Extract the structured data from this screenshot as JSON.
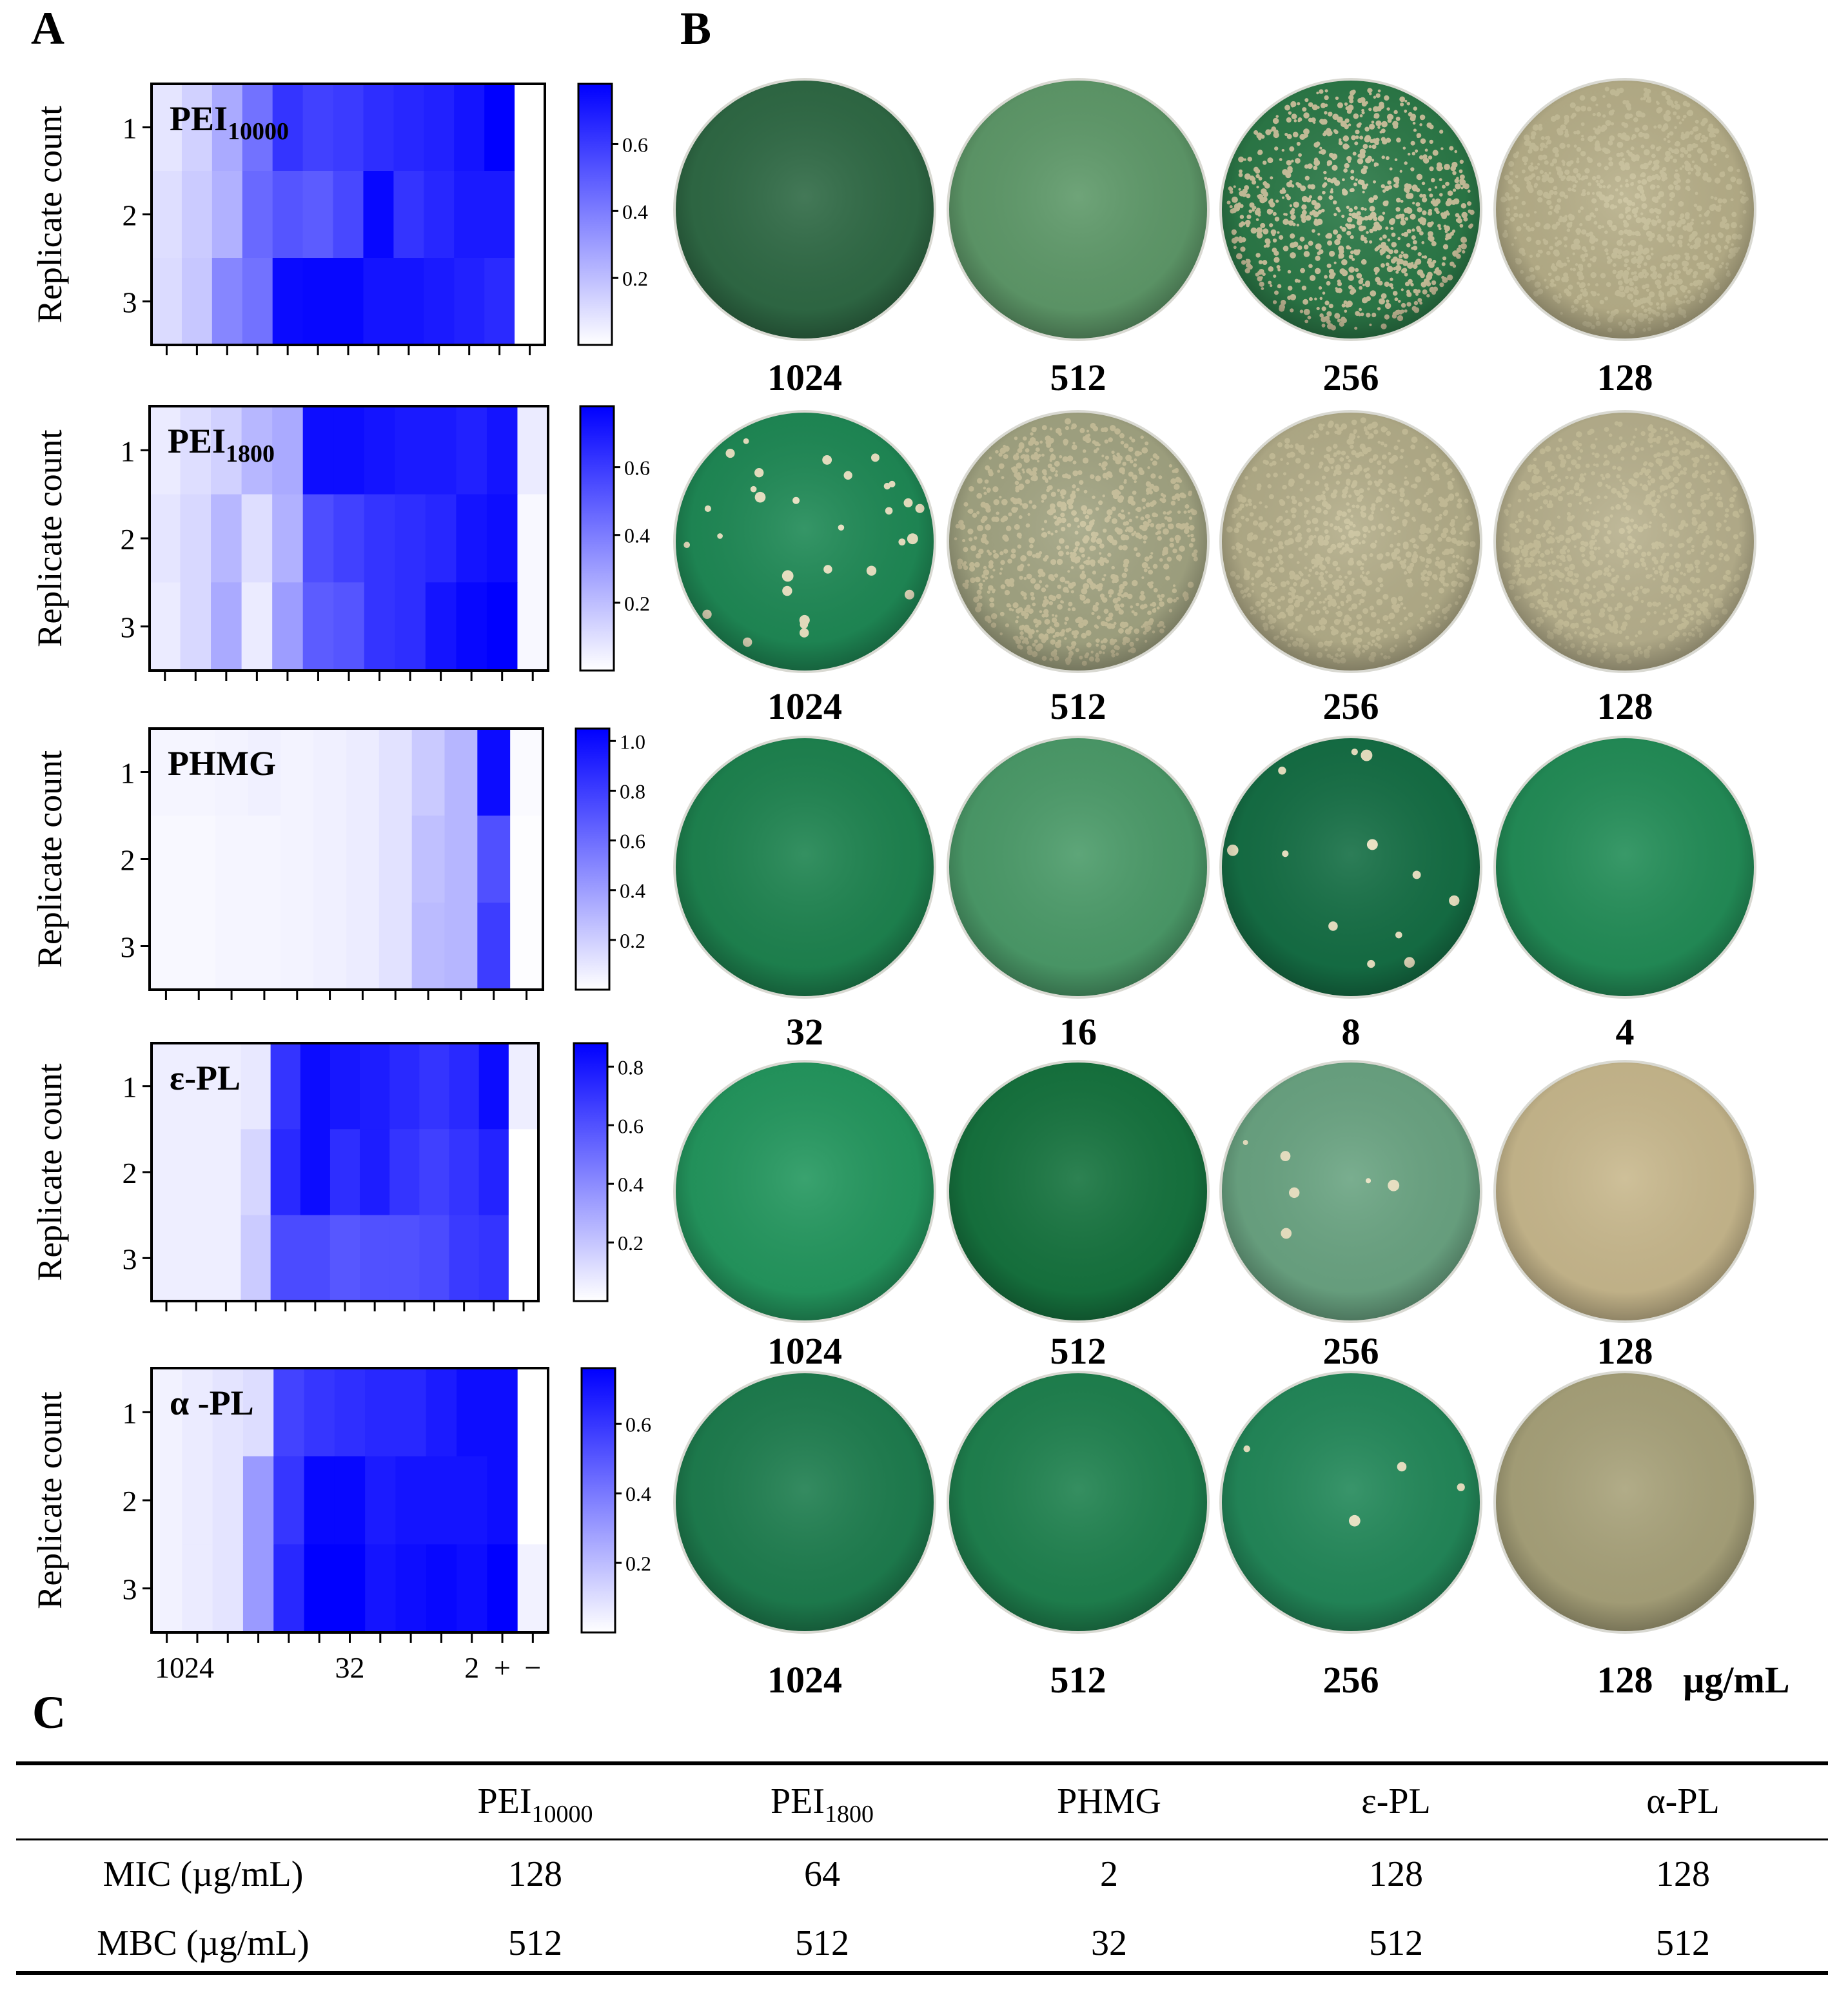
{
  "panels": {
    "a": "A",
    "b": "B",
    "c": "C"
  },
  "heatmaps": [
    {
      "title": "PEI",
      "sub": "10000",
      "ticks": [
        "0.6",
        "0.4",
        "0.2"
      ],
      "tickvals": [
        0.6,
        0.4,
        0.2
      ],
      "vmax": 0.78,
      "rows": [
        [
          0.08,
          0.14,
          0.26,
          0.43,
          0.62,
          0.58,
          0.6,
          0.64,
          0.66,
          0.68,
          0.72,
          0.78,
          0.0
        ],
        [
          0.1,
          0.16,
          0.24,
          0.46,
          0.52,
          0.5,
          0.56,
          0.76,
          0.62,
          0.66,
          0.7,
          0.7,
          0.0
        ],
        [
          0.11,
          0.17,
          0.37,
          0.43,
          0.75,
          0.76,
          0.76,
          0.72,
          0.72,
          0.7,
          0.68,
          0.65,
          0.0
        ]
      ]
    },
    {
      "title": "PEI",
      "sub": "1800",
      "ticks": [
        "0.6",
        "0.4",
        "0.2"
      ],
      "tickvals": [
        0.6,
        0.4,
        0.2
      ],
      "vmax": 0.78,
      "rows": [
        [
          0.06,
          0.1,
          0.14,
          0.22,
          0.26,
          0.74,
          0.74,
          0.72,
          0.7,
          0.7,
          0.68,
          0.72,
          0.06
        ],
        [
          0.08,
          0.12,
          0.22,
          0.1,
          0.24,
          0.54,
          0.58,
          0.62,
          0.64,
          0.66,
          0.72,
          0.74,
          0.02
        ],
        [
          0.06,
          0.12,
          0.26,
          0.06,
          0.3,
          0.5,
          0.52,
          0.62,
          0.64,
          0.72,
          0.76,
          0.78,
          0.02
        ]
      ]
    },
    {
      "title": "PHMG",
      "sub": "",
      "ticks": [
        "1.0",
        "0.8",
        "0.6",
        "0.4",
        "0.2"
      ],
      "tickvals": [
        1.0,
        0.8,
        0.6,
        0.4,
        0.2
      ],
      "vmax": 1.05,
      "rows": [
        [
          0.04,
          0.04,
          0.05,
          0.06,
          0.05,
          0.06,
          0.08,
          0.12,
          0.22,
          0.3,
          1.0,
          0.02
        ],
        [
          0.03,
          0.03,
          0.04,
          0.04,
          0.05,
          0.06,
          0.08,
          0.12,
          0.26,
          0.3,
          0.72,
          0.01
        ],
        [
          0.03,
          0.03,
          0.04,
          0.04,
          0.05,
          0.06,
          0.08,
          0.12,
          0.28,
          0.3,
          0.8,
          0.01
        ]
      ]
    },
    {
      "title": "ε-PL",
      "sub": "",
      "ticks": [
        "0.8",
        "0.6",
        "0.4",
        "0.2"
      ],
      "tickvals": [
        0.8,
        0.6,
        0.4,
        0.2
      ],
      "vmax": 0.88,
      "rows": [
        [
          0.06,
          0.06,
          0.06,
          0.08,
          0.7,
          0.84,
          0.8,
          0.78,
          0.74,
          0.7,
          0.74,
          0.84,
          0.06
        ],
        [
          0.06,
          0.06,
          0.06,
          0.14,
          0.74,
          0.84,
          0.72,
          0.78,
          0.7,
          0.66,
          0.7,
          0.76,
          0.0
        ],
        [
          0.06,
          0.06,
          0.06,
          0.18,
          0.62,
          0.62,
          0.58,
          0.6,
          0.6,
          0.62,
          0.68,
          0.7,
          0.0
        ]
      ]
    },
    {
      "title": "α -PL",
      "sub": "",
      "ticks": [
        "0.6",
        "0.4",
        "0.2"
      ],
      "tickvals": [
        0.6,
        0.4,
        0.2
      ],
      "vmax": 0.76,
      "rows": [
        [
          0.04,
          0.06,
          0.08,
          0.1,
          0.56,
          0.6,
          0.62,
          0.64,
          0.64,
          0.68,
          0.72,
          0.72,
          0.0
        ],
        [
          0.04,
          0.06,
          0.08,
          0.3,
          0.6,
          0.74,
          0.74,
          0.68,
          0.7,
          0.7,
          0.7,
          0.72,
          0.0
        ],
        [
          0.04,
          0.06,
          0.08,
          0.3,
          0.64,
          0.76,
          0.76,
          0.7,
          0.72,
          0.74,
          0.72,
          0.76,
          0.04
        ]
      ]
    }
  ],
  "ylabel": "Replicate count",
  "ytick_labels": [
    "1",
    "2",
    "3"
  ],
  "xtick_labels": [
    "1024",
    "32",
    "2",
    "+",
    "−"
  ],
  "plates": [
    {
      "labels": [
        "1024",
        "512",
        "256",
        "128"
      ],
      "colors": [
        "#2f6a45",
        "#5f9a6a",
        "#2c7a48",
        "#b8b08a"
      ],
      "colonies": [
        0,
        0,
        900,
        1000
      ]
    },
    {
      "labels": [
        "1024",
        "512",
        "256",
        "128"
      ],
      "colors": [
        "#1f8a56",
        "#a3a583",
        "#b4ae8a",
        "#b8b18e"
      ],
      "colonies": [
        30,
        900,
        900,
        900
      ]
    },
    {
      "labels": [
        "32",
        "16",
        "8",
        "4"
      ],
      "colors": [
        "#1e8450",
        "#4c9c6a",
        "#156f45",
        "#238e58"
      ],
      "colonies": [
        0,
        0,
        12,
        0
      ]
    },
    {
      "labels": [
        "1024",
        "512",
        "256",
        "128"
      ],
      "colors": [
        "#24985f",
        "#16743f",
        "#6ba583",
        "#c9b98e"
      ],
      "colonies": [
        0,
        0,
        6,
        0
      ]
    },
    {
      "labels": [
        "1024",
        "512",
        "256",
        "128"
      ],
      "colors": [
        "#1e7e4f",
        "#1f824f",
        "#23895a",
        "#a9a37b"
      ],
      "colonies": [
        0,
        0,
        4,
        0
      ]
    }
  ],
  "unit": "µg/mL",
  "table": {
    "headers": [
      [
        "",
        ""
      ],
      [
        "PEI",
        "10000"
      ],
      [
        "PEI",
        "1800"
      ],
      [
        "PHMG",
        ""
      ],
      [
        "ε-PL",
        ""
      ],
      [
        "α-PL",
        ""
      ]
    ],
    "rows": [
      [
        "MIC (µg/mL)",
        "128",
        "64",
        "2",
        "128",
        "128"
      ],
      [
        "MBC (µg/mL)",
        "512",
        "512",
        "32",
        "512",
        "512"
      ]
    ]
  }
}
